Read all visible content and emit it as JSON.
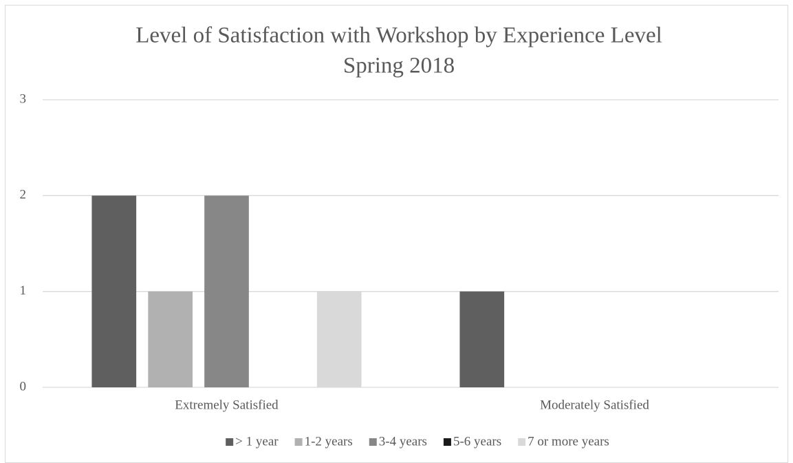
{
  "chart_data": {
    "type": "bar",
    "title": "Level of Satisfaction with Workshop by Experience Level",
    "subtitle": "Spring 2018",
    "categories": [
      "Extremely Satisfied",
      "Moderately Satisfied"
    ],
    "series": [
      {
        "name": "> 1 year",
        "color": "#5f5f5f",
        "values": [
          2,
          1
        ]
      },
      {
        "name": "1-2 years",
        "color": "#b1b1b1",
        "values": [
          1,
          0
        ]
      },
      {
        "name": "3-4 years",
        "color": "#878787",
        "values": [
          2,
          0
        ]
      },
      {
        "name": "5-6 years",
        "color": "#1a1a1a",
        "values": [
          0,
          0
        ]
      },
      {
        "name": "7 or more years",
        "color": "#d9d9d9",
        "values": [
          1,
          0
        ]
      }
    ],
    "ylim": [
      0,
      3
    ],
    "yticks": [
      0,
      1,
      2,
      3
    ],
    "grid": true,
    "legend": "bottom"
  }
}
